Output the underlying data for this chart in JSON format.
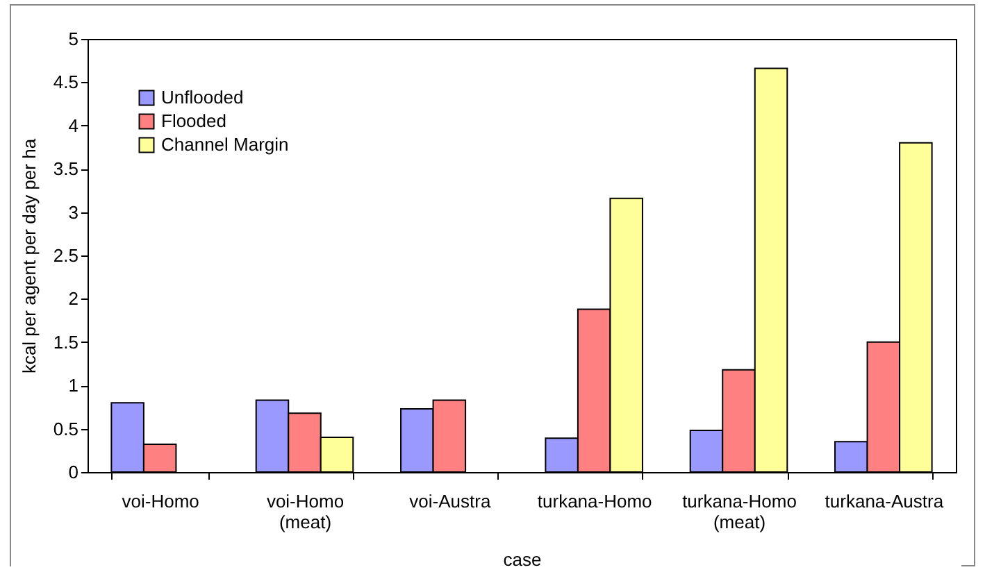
{
  "chart_data": {
    "type": "bar",
    "xlabel": "case",
    "ylabel": "kcal per agent per day per ha",
    "categories": [
      "voi-Homo",
      "voi-Homo (meat)",
      "voi-Austra",
      "turkana-Homo",
      "turkana-Homo (meat)",
      "turkana-Austra"
    ],
    "series": [
      {
        "name": "Unflooded",
        "color": "#9999ff",
        "values": [
          0.8,
          0.83,
          0.73,
          0.39,
          0.48,
          0.35
        ]
      },
      {
        "name": "Flooded",
        "color": "#ff8080",
        "values": [
          0.32,
          0.68,
          0.83,
          1.88,
          1.18,
          1.5
        ]
      },
      {
        "name": "Channel Margin",
        "color": "#ffff99",
        "values": [
          null,
          0.4,
          null,
          3.16,
          4.66,
          3.8
        ]
      }
    ],
    "ylim": [
      0,
      5
    ],
    "yticks": [
      0,
      0.5,
      1,
      1.5,
      2,
      2.5,
      3,
      3.5,
      4,
      4.5,
      5
    ],
    "grid": false,
    "legend": "top left"
  }
}
